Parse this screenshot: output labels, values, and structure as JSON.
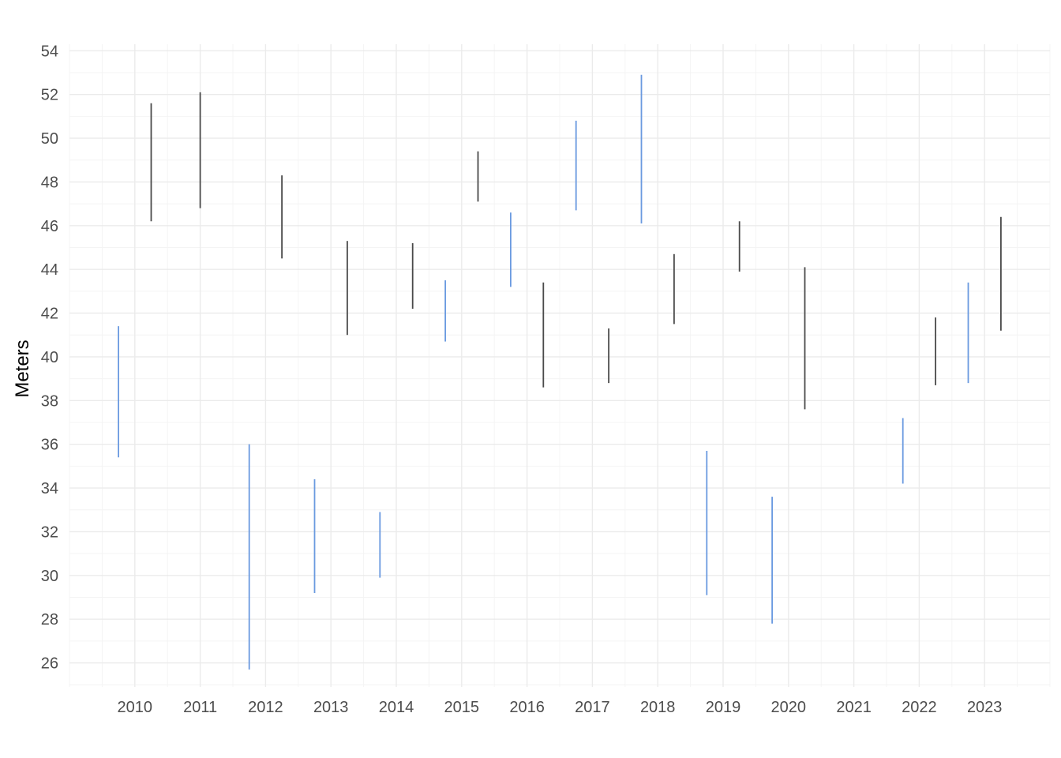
{
  "chart_data": {
    "type": "range",
    "title": "",
    "xlabel": "",
    "ylabel": "Meters",
    "ylim": [
      24.9,
      54.3
    ],
    "xlim": [
      2009.0,
      2024.0
    ],
    "yticks": [
      26,
      28,
      30,
      32,
      34,
      36,
      38,
      40,
      42,
      44,
      46,
      48,
      50,
      52,
      54
    ],
    "xticks": [
      2010,
      2011,
      2012,
      2013,
      2014,
      2015,
      2016,
      2017,
      2018,
      2019,
      2020,
      2021,
      2022,
      2023
    ],
    "grid": true,
    "legend": "none",
    "colors": {
      "blue": "#6a9ae0",
      "dark": "#4a4a4a",
      "grid_major": "#ebebeb",
      "grid_minor": "#f4f4f4"
    },
    "segments": [
      {
        "x": 2009.75,
        "low": 35.4,
        "high": 41.4,
        "color": "blue"
      },
      {
        "x": 2010.25,
        "low": 46.2,
        "high": 51.6,
        "color": "dark"
      },
      {
        "x": 2011.0,
        "low": 46.8,
        "high": 52.1,
        "color": "dark"
      },
      {
        "x": 2011.75,
        "low": 25.7,
        "high": 36.0,
        "color": "blue"
      },
      {
        "x": 2012.25,
        "low": 44.5,
        "high": 48.3,
        "color": "dark"
      },
      {
        "x": 2012.75,
        "low": 29.2,
        "high": 34.4,
        "color": "blue"
      },
      {
        "x": 2013.25,
        "low": 41.0,
        "high": 45.3,
        "color": "dark"
      },
      {
        "x": 2013.75,
        "low": 29.9,
        "high": 32.9,
        "color": "blue"
      },
      {
        "x": 2014.25,
        "low": 42.2,
        "high": 45.2,
        "color": "dark"
      },
      {
        "x": 2014.75,
        "low": 40.7,
        "high": 43.5,
        "color": "blue"
      },
      {
        "x": 2015.25,
        "low": 47.1,
        "high": 49.4,
        "color": "dark"
      },
      {
        "x": 2015.75,
        "low": 43.2,
        "high": 46.6,
        "color": "blue"
      },
      {
        "x": 2016.25,
        "low": 38.6,
        "high": 43.4,
        "color": "dark"
      },
      {
        "x": 2016.75,
        "low": 46.7,
        "high": 50.8,
        "color": "blue"
      },
      {
        "x": 2017.25,
        "low": 38.8,
        "high": 41.3,
        "color": "dark"
      },
      {
        "x": 2017.75,
        "low": 46.1,
        "high": 52.9,
        "color": "blue"
      },
      {
        "x": 2018.25,
        "low": 41.5,
        "high": 44.7,
        "color": "dark"
      },
      {
        "x": 2018.75,
        "low": 29.1,
        "high": 35.7,
        "color": "blue"
      },
      {
        "x": 2019.25,
        "low": 43.9,
        "high": 46.2,
        "color": "dark"
      },
      {
        "x": 2019.75,
        "low": 27.8,
        "high": 33.6,
        "color": "blue"
      },
      {
        "x": 2020.25,
        "low": 37.6,
        "high": 44.1,
        "color": "dark"
      },
      {
        "x": 2021.75,
        "low": 34.2,
        "high": 37.2,
        "color": "blue"
      },
      {
        "x": 2022.25,
        "low": 38.7,
        "high": 41.8,
        "color": "dark"
      },
      {
        "x": 2022.75,
        "low": 38.8,
        "high": 43.4,
        "color": "blue"
      },
      {
        "x": 2023.25,
        "low": 41.2,
        "high": 46.4,
        "color": "dark"
      }
    ]
  }
}
